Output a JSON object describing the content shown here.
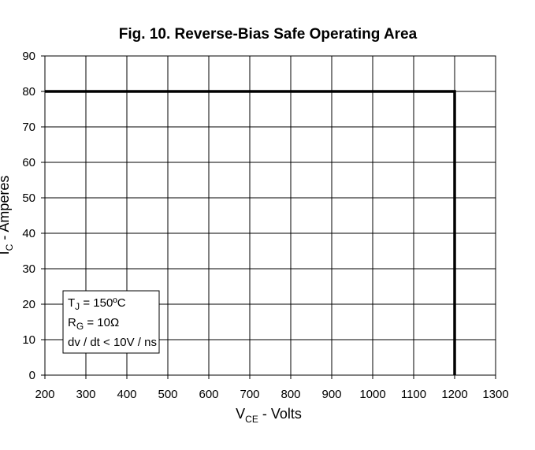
{
  "chart_data": {
    "type": "line",
    "title": "Fig. 10. Reverse-Bias Safe Operating Area",
    "xlabel": {
      "main": "V",
      "sub": "CE",
      "rest": " - Volts"
    },
    "ylabel": {
      "main": "I",
      "sub": "C",
      "rest": " - Amperes"
    },
    "xlim": [
      200,
      1300
    ],
    "ylim": [
      0,
      90
    ],
    "xticks": [
      200,
      300,
      400,
      500,
      600,
      700,
      800,
      900,
      1000,
      1100,
      1200,
      1300
    ],
    "yticks": [
      0,
      10,
      20,
      30,
      40,
      50,
      60,
      70,
      80,
      90
    ],
    "grid": true,
    "series": [
      {
        "x": [
          200,
          1200,
          1200
        ],
        "y": [
          80,
          80,
          0
        ],
        "color": "#000000"
      }
    ],
    "annotations": [
      {
        "main": "T",
        "sub": "J",
        "rest": " = 150ºC"
      },
      {
        "main": "R",
        "sub": "G",
        "rest": " = 10Ω"
      },
      {
        "main": "dv / dt < 10V / ns",
        "sub": "",
        "rest": ""
      }
    ],
    "annotation_position": "bottom-left"
  }
}
